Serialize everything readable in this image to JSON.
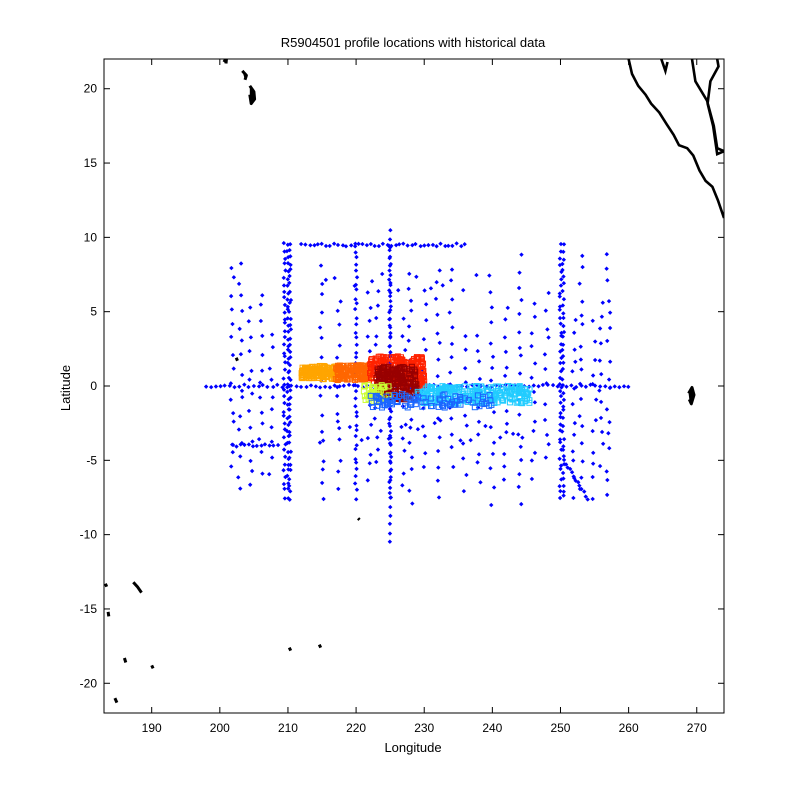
{
  "chart_data": {
    "type": "scatter",
    "title": "R5904501 profile locations with historical data",
    "xlabel": "Longitude",
    "ylabel": "Latitude",
    "xlim": [
      183,
      274
    ],
    "ylim": [
      -22,
      22
    ],
    "xticks": [
      190,
      200,
      210,
      220,
      230,
      240,
      250,
      260,
      270
    ],
    "yticks": [
      -20,
      -15,
      -10,
      -5,
      0,
      5,
      10,
      15,
      20
    ],
    "grid": false,
    "legend": "none",
    "coastlines": [
      {
        "name": "central-america-coast",
        "color": "#000000",
        "points": [
          [
            269.3,
            22
          ],
          [
            269.8,
            20.5
          ],
          [
            271.5,
            19.2
          ],
          [
            272.5,
            17.5
          ],
          [
            273,
            16
          ],
          [
            274,
            15.8
          ],
          [
            273,
            15.6
          ],
          [
            272.4,
            17.5
          ],
          [
            271.6,
            19.0
          ],
          [
            272,
            20.5
          ],
          [
            273.2,
            21.5
          ],
          [
            273,
            22
          ]
        ]
      },
      {
        "name": "mexico-west-coast",
        "color": "#000000",
        "points": [
          [
            260,
            22
          ],
          [
            260.5,
            21
          ],
          [
            261.4,
            20.2
          ],
          [
            262.5,
            19.6
          ],
          [
            263.3,
            19
          ],
          [
            264.5,
            18.4
          ],
          [
            265.6,
            17.6
          ],
          [
            266.6,
            16.9
          ],
          [
            267.4,
            16.2
          ],
          [
            268.6,
            16.0
          ],
          [
            269.5,
            15.5
          ],
          [
            270.4,
            14.5
          ],
          [
            271.3,
            13.8
          ],
          [
            272.3,
            13.4
          ],
          [
            273.1,
            12.5
          ],
          [
            274,
            11.3
          ]
        ]
      },
      {
        "name": "baja-tip",
        "color": "#000000",
        "points": [
          [
            264.8,
            22
          ],
          [
            265.4,
            21.2
          ],
          [
            265.7,
            21.8
          ]
        ]
      }
    ],
    "islands": [
      {
        "name": "hawaii-kauai",
        "points": [
          [
            200.6,
            21.8
          ],
          [
            201.0,
            22.1
          ],
          [
            200.9,
            21.7
          ]
        ]
      },
      {
        "name": "hawaii-maui",
        "points": [
          [
            203.3,
            21.2
          ],
          [
            203.9,
            20.9
          ],
          [
            203.7,
            20.6
          ]
        ]
      },
      {
        "name": "hawaii-big-island",
        "points": [
          [
            204.4,
            20.2
          ],
          [
            205.0,
            19.8
          ],
          [
            205.1,
            19.3
          ],
          [
            204.6,
            19.0
          ],
          [
            204.4,
            19.6
          ]
        ]
      },
      {
        "name": "galapagos",
        "points": [
          [
            268.8,
            -0.5
          ],
          [
            269.3,
            -0.1
          ],
          [
            269.6,
            -0.6
          ],
          [
            269.2,
            -1.2
          ],
          [
            268.9,
            -0.9
          ]
        ]
      },
      {
        "name": "line-islands-n",
        "points": [
          [
            202.4,
            1.9
          ],
          [
            202.6,
            1.7
          ]
        ]
      },
      {
        "name": "samoa",
        "points": [
          [
            187.3,
            -13.2
          ],
          [
            187.9,
            -13.5
          ],
          [
            188.5,
            -13.9
          ]
        ]
      },
      {
        "name": "tonga",
        "points": [
          [
            184.6,
            -21.0
          ],
          [
            184.9,
            -21.3
          ]
        ]
      },
      {
        "name": "niue",
        "points": [
          [
            190.0,
            -18.8
          ],
          [
            190.2,
            -19.0
          ]
        ]
      },
      {
        "name": "cook-islands",
        "points": [
          [
            210.2,
            -17.6
          ],
          [
            210.4,
            -17.8
          ]
        ]
      },
      {
        "name": "tahiti",
        "points": [
          [
            214.6,
            -17.4
          ],
          [
            214.8,
            -17.6
          ]
        ]
      },
      {
        "name": "tokelau",
        "points": [
          [
            183.2,
            -13.3
          ],
          [
            183.4,
            -13.5
          ]
        ]
      },
      {
        "name": "wallis",
        "points": [
          [
            183.6,
            -15.2
          ],
          [
            183.7,
            -15.5
          ]
        ]
      },
      {
        "name": "rarotonga",
        "points": [
          [
            186,
            -18.3
          ],
          [
            186.2,
            -18.6
          ]
        ]
      },
      {
        "name": "marquesas-s",
        "points": [
          [
            220.3,
            -8.9
          ],
          [
            220.5,
            -9.0
          ]
        ]
      }
    ],
    "series": [
      {
        "color": "#0000ff",
        "marker": "dot"
      },
      {
        "color": "#ff6600",
        "marker": "square"
      },
      {
        "color": "#ffa500",
        "marker": "square"
      },
      {
        "color": "#ff2200",
        "marker": "square"
      },
      {
        "color": "#990000",
        "marker": "square"
      },
      {
        "color": "#22ccff",
        "marker": "square"
      },
      {
        "color": "#1a66ff",
        "marker": "square"
      },
      {
        "color": "#ccff33",
        "marker": "square"
      }
    ]
  }
}
